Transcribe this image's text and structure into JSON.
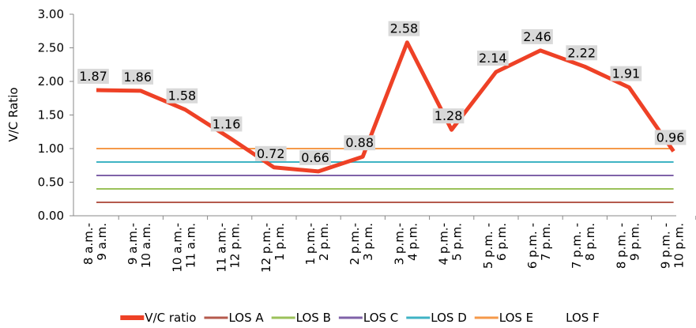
{
  "chart_data": {
    "type": "line",
    "y_label": "V/C Ratio",
    "categories": [
      [
        "8 a.m.-",
        "9 a.m."
      ],
      [
        "9 a.m.-",
        "10 a.m."
      ],
      [
        "10 a.m.-",
        "11 a.m."
      ],
      [
        "11 a.m.-",
        "12 p.m."
      ],
      [
        "12 p.m.-",
        "1 p.m."
      ],
      [
        "1 p.m.-",
        "2 p.m."
      ],
      [
        "2 p.m.-",
        "3 p.m."
      ],
      [
        "3 p.m.-",
        "4 p.m."
      ],
      [
        "4 p.m.-",
        "5 p.m."
      ],
      [
        "5 p.m. -",
        "6 p.m."
      ],
      [
        "6 p.m. -",
        "7 p.m."
      ],
      [
        "7 p.m. -",
        "8 p.m."
      ],
      [
        "8 p.m. -",
        "9 p.m."
      ],
      [
        "9 p.m. -",
        "10 p.m."
      ]
    ],
    "series": [
      {
        "name": "V/C ratio",
        "color": "#ee4126",
        "width": 5,
        "data_labels": true,
        "values": [
          1.87,
          1.86,
          1.58,
          1.16,
          0.72,
          0.66,
          0.88,
          2.58,
          1.28,
          2.14,
          2.46,
          2.22,
          1.91,
          0.96
        ]
      },
      {
        "name": "LOS A",
        "color": "#b55a4d",
        "width": 2,
        "values": [
          0.2,
          0.2,
          0.2,
          0.2,
          0.2,
          0.2,
          0.2,
          0.2,
          0.2,
          0.2,
          0.2,
          0.2,
          0.2,
          0.2
        ]
      },
      {
        "name": "LOS B",
        "color": "#9bc15a",
        "width": 2,
        "values": [
          0.4,
          0.4,
          0.4,
          0.4,
          0.4,
          0.4,
          0.4,
          0.4,
          0.4,
          0.4,
          0.4,
          0.4,
          0.4,
          0.4
        ]
      },
      {
        "name": "LOS C",
        "color": "#7f62a8",
        "width": 2,
        "values": [
          0.6,
          0.6,
          0.6,
          0.6,
          0.6,
          0.6,
          0.6,
          0.6,
          0.6,
          0.6,
          0.6,
          0.6,
          0.6,
          0.6
        ]
      },
      {
        "name": "LOS D",
        "color": "#3fb3c4",
        "width": 2,
        "values": [
          0.8,
          0.8,
          0.8,
          0.8,
          0.8,
          0.8,
          0.8,
          0.8,
          0.8,
          0.8,
          0.8,
          0.8,
          0.8,
          0.8
        ]
      },
      {
        "name": "LOS E",
        "color": "#f5994a",
        "width": 2,
        "values": [
          1.0,
          1.0,
          1.0,
          1.0,
          1.0,
          1.0,
          1.0,
          1.0,
          1.0,
          1.0,
          1.0,
          1.0,
          1.0,
          1.0
        ]
      },
      {
        "name": "LOS F",
        "color": null,
        "width": 2,
        "values": [
          null,
          null,
          null,
          null,
          null,
          null,
          null,
          null,
          null,
          null,
          null,
          null,
          null,
          null
        ]
      }
    ],
    "ylim": [
      0,
      3
    ],
    "yticks": [
      {
        "value": 0,
        "label": "0.00"
      },
      {
        "value": 0.5,
        "label": "0.50"
      },
      {
        "value": 1,
        "label": "1.00"
      },
      {
        "value": 1.5,
        "label": "1.50"
      },
      {
        "value": 2,
        "label": "2.00"
      },
      {
        "value": 2.5,
        "label": "2.50"
      },
      {
        "value": 3,
        "label": "3.00"
      }
    ],
    "legend": "bottom"
  }
}
